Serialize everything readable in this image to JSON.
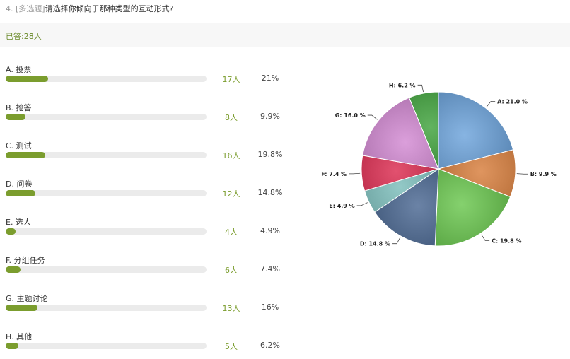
{
  "question": {
    "number": "4.",
    "tag": "[多选题]",
    "text": "请选择你倾向于那种类型的互动形式?"
  },
  "answered": "已答:28人",
  "options": [
    {
      "label": "A. 投票",
      "count": "17人",
      "pct": "21%",
      "fraction": 0.21
    },
    {
      "label": "B. 抢答",
      "count": "8人",
      "pct": "9.9%",
      "fraction": 0.099
    },
    {
      "label": "C. 测试",
      "count": "16人",
      "pct": "19.8%",
      "fraction": 0.198
    },
    {
      "label": "D. 问卷",
      "count": "12人",
      "pct": "14.8%",
      "fraction": 0.148
    },
    {
      "label": "E. 选人",
      "count": "4人",
      "pct": "4.9%",
      "fraction": 0.049
    },
    {
      "label": "F. 分组任务",
      "count": "6人",
      "pct": "7.4%",
      "fraction": 0.074
    },
    {
      "label": "G. 主题讨论",
      "count": "13人",
      "pct": "16%",
      "fraction": 0.16
    },
    {
      "label": "H. 其他",
      "count": "5人",
      "pct": "6.2%",
      "fraction": 0.062
    }
  ],
  "colors": {
    "bar_fill": "#7b9d2e",
    "bar_track": "#ebebeb",
    "answered_text": "#6a8a2a"
  },
  "chart_data": {
    "type": "pie",
    "slices": [
      {
        "label": "A: 21.0 %",
        "value": 21.0,
        "color": "#5f9bd8"
      },
      {
        "label": "B: 9.9 %",
        "value": 9.9,
        "color": "#d4722a"
      },
      {
        "label": "C: 19.8 %",
        "value": 19.8,
        "color": "#5cc23e"
      },
      {
        "label": "D: 14.8 %",
        "value": 14.8,
        "color": "#3a5a88"
      },
      {
        "label": "E: 4.9 %",
        "value": 4.9,
        "color": "#6fb7b4"
      },
      {
        "label": "F: 7.4 %",
        "value": 7.4,
        "color": "#d8173f"
      },
      {
        "label": "G: 16.0 %",
        "value": 16.0,
        "color": "#cf7fcf"
      },
      {
        "label": "H: 6.2 %",
        "value": 6.2,
        "color": "#2e9a2a"
      }
    ]
  }
}
